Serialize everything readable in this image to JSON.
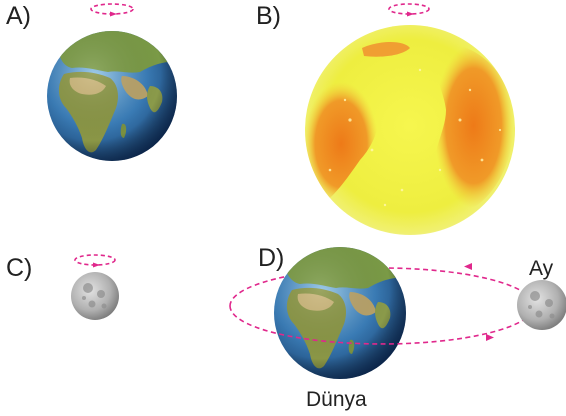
{
  "options": {
    "a": "A)",
    "b": "B)",
    "c": "C)",
    "d": "D)"
  },
  "bodies": {
    "earth_label": "Dünya",
    "moon_label": "Ay"
  },
  "colors": {
    "arrow": "#e0288c",
    "ocean": "#2f6fa8",
    "land": "#6e8a3c",
    "sun_core": "#f2f24a",
    "sun_spots": "#ee8a1e",
    "moon": "#b8b8b8"
  },
  "icons": {
    "rotation": "rotation-arrow-icon",
    "orbit": "orbit-path-icon"
  }
}
